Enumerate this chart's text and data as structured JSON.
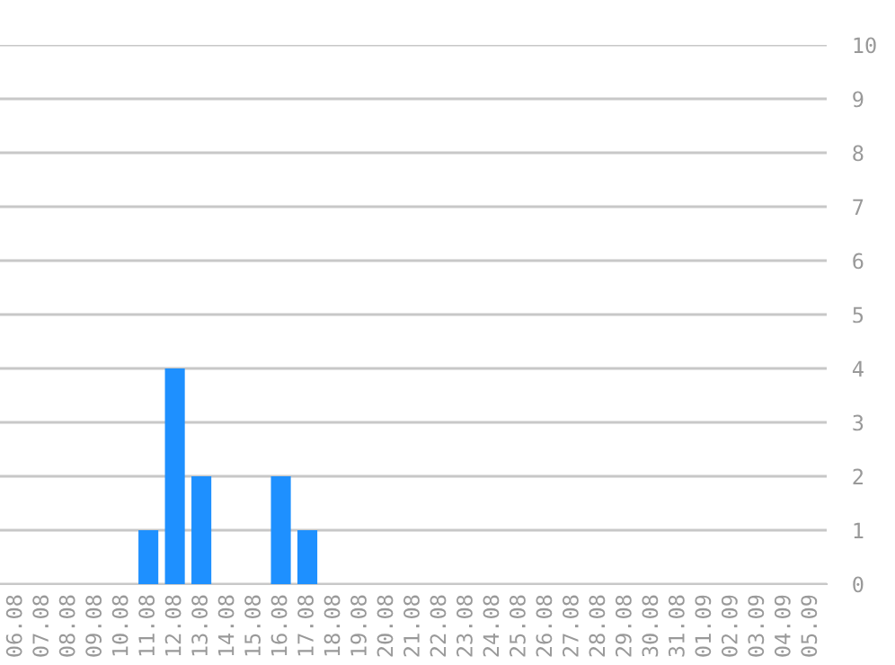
{
  "chart_data": {
    "type": "bar",
    "categories": [
      "06.08",
      "07.08",
      "08.08",
      "09.08",
      "10.08",
      "11.08",
      "12.08",
      "13.08",
      "14.08",
      "15.08",
      "16.08",
      "17.08",
      "18.08",
      "19.08",
      "20.08",
      "21.08",
      "22.08",
      "23.08",
      "24.08",
      "25.08",
      "26.08",
      "27.08",
      "28.08",
      "29.08",
      "30.08",
      "31.08",
      "01.09",
      "02.09",
      "03.09",
      "04.09",
      "05.09"
    ],
    "values": [
      0,
      0,
      0,
      0,
      0,
      1,
      4,
      2,
      0,
      0,
      2,
      1,
      0,
      0,
      0,
      0,
      0,
      0,
      0,
      0,
      0,
      0,
      0,
      0,
      0,
      0,
      0,
      0,
      0,
      0,
      0
    ],
    "color": "#1e90ff",
    "ylim": [
      0,
      10
    ],
    "yticks": [
      0,
      1,
      2,
      3,
      4,
      5,
      6,
      7,
      8,
      9,
      10
    ],
    "grid": "y"
  }
}
